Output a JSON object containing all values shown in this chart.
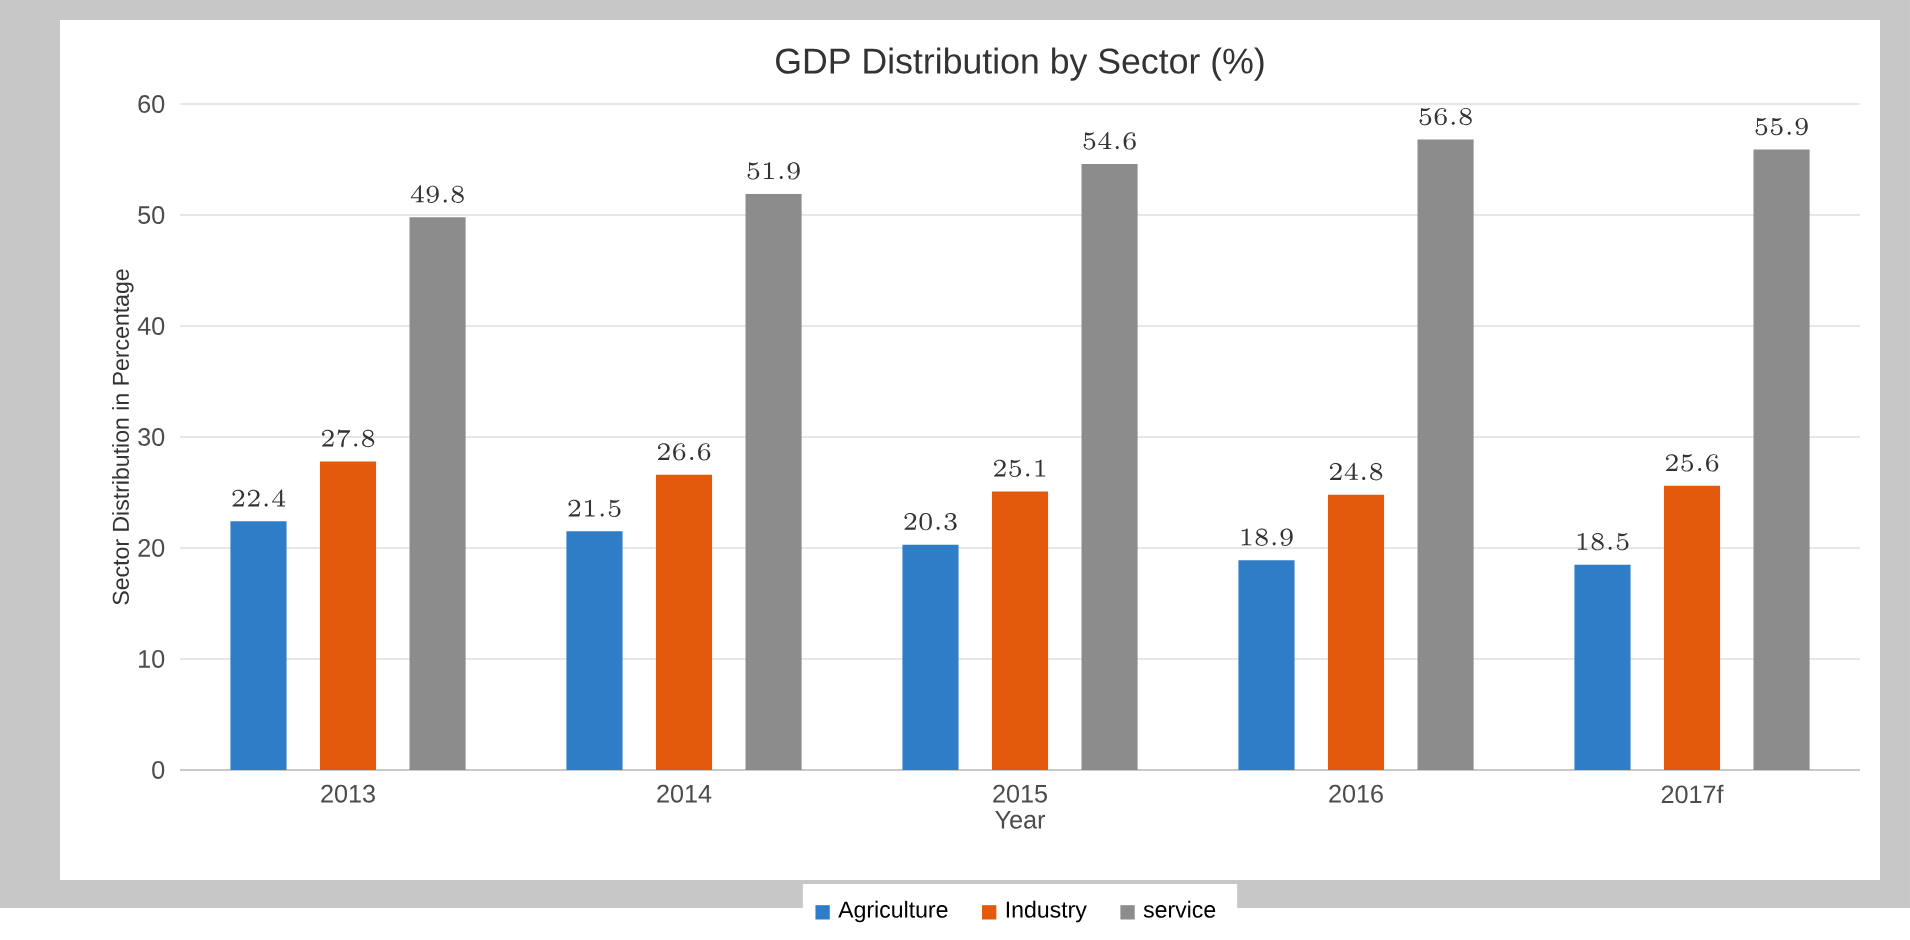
{
  "chart_data": {
    "type": "bar",
    "title": "GDP Distribution by Sector (%)",
    "xlabel": "Year",
    "ylabel": "Sector Distribution in Percentage",
    "categories": [
      "2013",
      "2014",
      "2015",
      "2016",
      "2017f"
    ],
    "series": [
      {
        "name": "Agriculture",
        "color": "#2e7dc6",
        "values": [
          22.4,
          21.5,
          20.3,
          18.9,
          18.5
        ]
      },
      {
        "name": "Industry",
        "color": "#e35a0c",
        "values": [
          27.8,
          26.6,
          25.1,
          24.8,
          25.6
        ]
      },
      {
        "name": "service",
        "color": "#8c8c8c",
        "values": [
          49.8,
          51.9,
          54.6,
          56.8,
          55.9
        ]
      }
    ],
    "ylim": [
      0,
      60
    ],
    "yticks": [
      0,
      10,
      20,
      30,
      40,
      50,
      60
    ],
    "grid": "y",
    "legend": "bottom",
    "data_labels": true
  }
}
